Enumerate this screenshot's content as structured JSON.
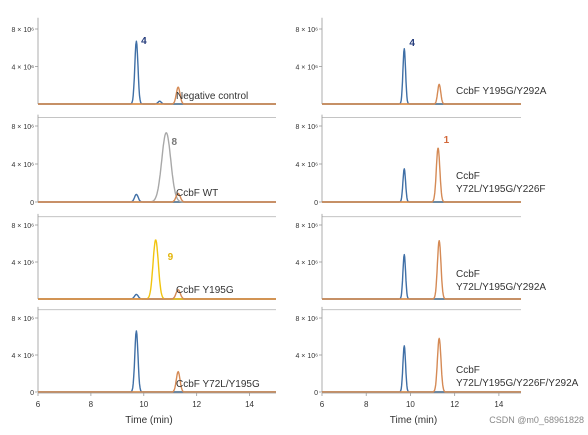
{
  "figure": {
    "xlabel": "Time (min)",
    "watermark": "CSDN @m0_68961828",
    "colors": {
      "blue": "#3f6fa6",
      "orange": "#d58a55",
      "gray": "#a8a8a8",
      "yellow": "#f1c40f",
      "baseline": "#f0b429",
      "compound4": "#233a7a",
      "compound8": "#777777",
      "compound9": "#e3b50a",
      "compound1": "#d2683a"
    }
  },
  "chart_data": [
    {
      "type": "line",
      "panel": "left-1",
      "label": "Negative control",
      "x_ticks": [],
      "y_ticks": [
        "8 × 10⁶",
        "4 × 10⁶"
      ],
      "peak_labels": [
        {
          "text": "4",
          "color": "compound4",
          "x": 9.9,
          "y": 6.4
        }
      ],
      "series": [
        {
          "color": "blue",
          "peaks": [
            {
              "x": 9.72,
              "h": 6.7,
              "w": 0.06
            },
            {
              "x": 10.6,
              "h": 0.3,
              "w": 0.06
            }
          ]
        },
        {
          "color": "orange",
          "peaks": [
            {
              "x": 11.3,
              "h": 1.8,
              "w": 0.07
            }
          ]
        }
      ]
    },
    {
      "type": "line",
      "panel": "left-2",
      "label": "CcbF WT",
      "x_ticks": [],
      "y_ticks": [
        "8 × 10⁶",
        "4 × 10⁶",
        "0"
      ],
      "peak_labels": [
        {
          "text": "8",
          "color": "compound8",
          "x": 11.05,
          "y": 6.0
        }
      ],
      "series": [
        {
          "color": "blue",
          "peaks": [
            {
              "x": 9.72,
              "h": 0.8,
              "w": 0.07
            }
          ]
        },
        {
          "color": "gray",
          "peaks": [
            {
              "x": 10.85,
              "h": 7.3,
              "w": 0.17
            }
          ]
        },
        {
          "color": "orange",
          "peaks": [
            {
              "x": 11.3,
              "h": 0.9,
              "w": 0.08
            }
          ]
        }
      ]
    },
    {
      "type": "line",
      "panel": "left-3",
      "label": "CcbF Y195G",
      "x_ticks": [],
      "y_ticks": [
        "8 × 10⁶",
        "4 × 10⁶"
      ],
      "peak_labels": [
        {
          "text": "9",
          "color": "compound9",
          "x": 10.9,
          "y": 4.2
        }
      ],
      "series": [
        {
          "color": "blue",
          "peaks": [
            {
              "x": 9.72,
              "h": 0.5,
              "w": 0.07
            }
          ]
        },
        {
          "color": "yellow",
          "peaks": [
            {
              "x": 10.45,
              "h": 6.4,
              "w": 0.1
            }
          ]
        },
        {
          "color": "orange",
          "peaks": [
            {
              "x": 11.3,
              "h": 1.0,
              "w": 0.08
            }
          ]
        }
      ]
    },
    {
      "type": "line",
      "panel": "left-4",
      "label": "CcbF Y72L/Y195G",
      "x_ticks": [
        "6",
        "8",
        "10",
        "12",
        "14"
      ],
      "y_ticks": [
        "8 × 10⁶",
        "4 × 10⁶",
        "0"
      ],
      "peak_labels": [],
      "series": [
        {
          "color": "blue",
          "peaks": [
            {
              "x": 9.72,
              "h": 6.6,
              "w": 0.06
            }
          ]
        },
        {
          "color": "orange",
          "peaks": [
            {
              "x": 11.3,
              "h": 2.2,
              "w": 0.07
            }
          ]
        }
      ]
    },
    {
      "type": "line",
      "panel": "right-1",
      "label": "CcbF Y195G/Y292A",
      "x_ticks": [],
      "y_ticks": [
        "8 × 10⁶",
        "4 × 10⁶"
      ],
      "peak_labels": [
        {
          "text": "4",
          "color": "compound4",
          "x": 9.95,
          "y": 6.2
        }
      ],
      "series": [
        {
          "color": "blue",
          "peaks": [
            {
              "x": 9.72,
              "h": 5.9,
              "w": 0.06
            }
          ]
        },
        {
          "color": "orange",
          "peaks": [
            {
              "x": 11.3,
              "h": 2.1,
              "w": 0.07
            }
          ]
        }
      ]
    },
    {
      "type": "line",
      "panel": "right-2",
      "label": "CcbF Y72L/Y195G/Y226F",
      "x_ticks": [],
      "y_ticks": [
        "8 × 10⁶",
        "4 × 10⁶",
        "0"
      ],
      "peak_labels": [
        {
          "text": "1",
          "color": "compound1",
          "x": 11.5,
          "y": 6.2
        }
      ],
      "series": [
        {
          "color": "blue",
          "peaks": [
            {
              "x": 9.72,
              "h": 3.5,
              "w": 0.06
            }
          ]
        },
        {
          "color": "orange",
          "peaks": [
            {
              "x": 11.25,
              "h": 5.7,
              "w": 0.08
            }
          ]
        }
      ]
    },
    {
      "type": "line",
      "panel": "right-3",
      "label": "CcbF Y72L/Y195G/Y292A",
      "x_ticks": [],
      "y_ticks": [
        "8 × 10⁶",
        "4 × 10⁶"
      ],
      "peak_labels": [],
      "series": [
        {
          "color": "blue",
          "peaks": [
            {
              "x": 9.72,
              "h": 4.8,
              "w": 0.06
            }
          ]
        },
        {
          "color": "orange",
          "peaks": [
            {
              "x": 11.3,
              "h": 6.3,
              "w": 0.08
            }
          ]
        }
      ]
    },
    {
      "type": "line",
      "panel": "right-4",
      "label": "CcbF Y72L/Y195G/Y226F/Y292A",
      "x_ticks": [
        "6",
        "8",
        "10",
        "12",
        "14"
      ],
      "y_ticks": [
        "8 × 10⁶",
        "4 × 10⁶",
        "0"
      ],
      "peak_labels": [],
      "series": [
        {
          "color": "blue",
          "peaks": [
            {
              "x": 9.72,
              "h": 5.0,
              "w": 0.06
            }
          ]
        },
        {
          "color": "orange",
          "peaks": [
            {
              "x": 11.3,
              "h": 5.8,
              "w": 0.08
            }
          ]
        }
      ]
    }
  ]
}
